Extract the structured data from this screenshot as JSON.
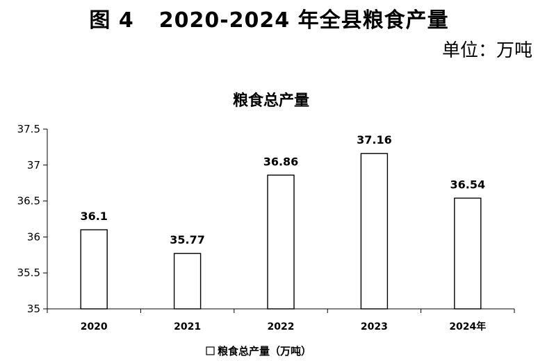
{
  "figure": {
    "number": "图 4",
    "title": "2020-2024 年全县粮食产量",
    "unit": "单位：万吨"
  },
  "chart_data": {
    "type": "bar",
    "title": "粮食总产量",
    "categories": [
      "2020",
      "2021",
      "2022",
      "2023",
      "2024年"
    ],
    "series": [
      {
        "name": "粮食总产量（万吨）",
        "values": [
          36.1,
          35.77,
          36.86,
          37.16,
          36.54
        ]
      }
    ],
    "value_labels": [
      "36.1",
      "35.77",
      "36.86",
      "37.16",
      "36.54"
    ],
    "ylim": [
      35,
      37.5
    ],
    "yticks": [
      35,
      35.5,
      36,
      36.5,
      37,
      37.5
    ],
    "ytick_labels": [
      "35",
      "35.5",
      "36",
      "36.5",
      "37",
      "37.5"
    ],
    "xlabel": "",
    "ylabel": "",
    "grid": false,
    "legend_position": "bottom-center",
    "colors": {
      "bar_fill": "#ffffff",
      "bar_stroke": "#000000",
      "axis": "#000000"
    }
  }
}
